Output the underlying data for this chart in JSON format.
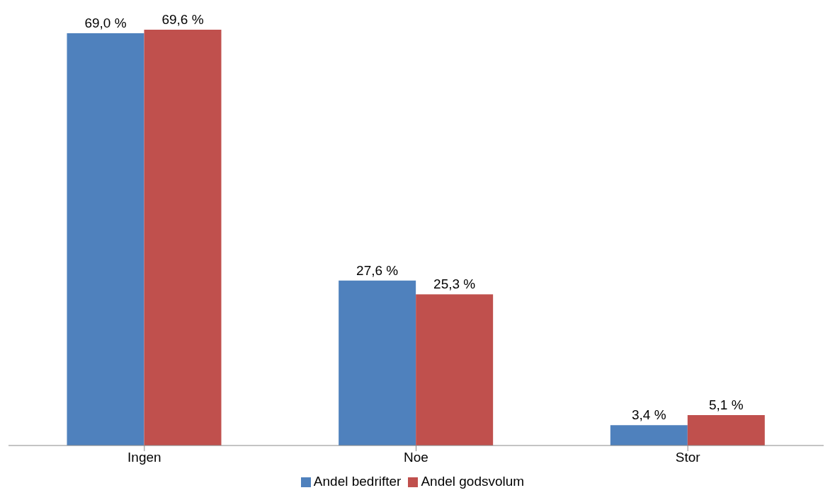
{
  "chart_data": {
    "type": "bar",
    "categories": [
      "Ingen",
      "Noe",
      "Stor"
    ],
    "series": [
      {
        "name": "Andel bedrifter",
        "color": "#4f81bd",
        "values": [
          69.0,
          27.6,
          3.4
        ],
        "value_labels": [
          "69,0 %",
          "27,6 %",
          "3,4 %"
        ]
      },
      {
        "name": "Andel godsvolum",
        "color": "#c0504d",
        "values": [
          69.6,
          25.3,
          5.1
        ],
        "value_labels": [
          "69,6 %",
          "25,3 %",
          "5,1 %"
        ]
      }
    ],
    "relative": false,
    "grid": false,
    "legend": "bottom"
  }
}
